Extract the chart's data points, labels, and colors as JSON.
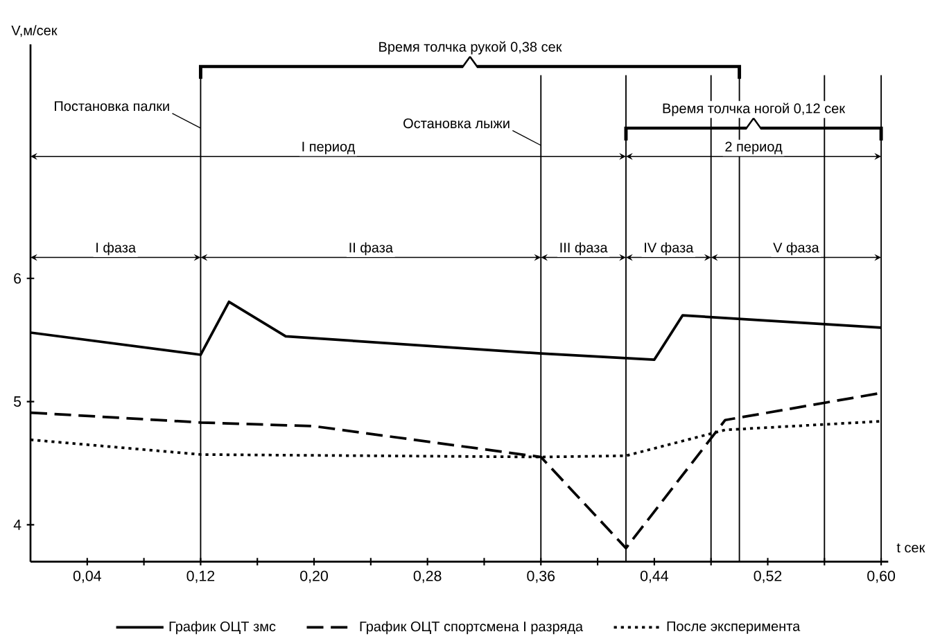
{
  "chart_data": {
    "type": "line",
    "xlabel": "t сек",
    "ylabel": "V,м/сек",
    "xlim": [
      0,
      0.605
    ],
    "ylim": [
      3.7,
      7.9
    ],
    "xticks": [
      {
        "value": 0.04,
        "label": "0,04"
      },
      {
        "value": 0.08,
        "label": null
      },
      {
        "value": 0.12,
        "label": "0,12"
      },
      {
        "value": 0.16,
        "label": null
      },
      {
        "value": 0.2,
        "label": "0,20"
      },
      {
        "value": 0.24,
        "label": null
      },
      {
        "value": 0.28,
        "label": "0,28"
      },
      {
        "value": 0.32,
        "label": null
      },
      {
        "value": 0.36,
        "label": "0,36"
      },
      {
        "value": 0.4,
        "label": null
      },
      {
        "value": 0.44,
        "label": "0,44"
      },
      {
        "value": 0.48,
        "label": null
      },
      {
        "value": 0.52,
        "label": "0,52"
      },
      {
        "value": 0.56,
        "label": null
      },
      {
        "value": 0.6,
        "label": "0,60"
      }
    ],
    "yticks": [
      4,
      5,
      6
    ],
    "grid": false,
    "legend": "bottom",
    "marker": "none",
    "series": [
      {
        "name": "График ОЦТ змс",
        "color": "#000000",
        "line_style": "solid",
        "x": [
          0,
          0.12,
          0.14,
          0.18,
          0.36,
          0.44,
          0.46,
          0.6
        ],
        "values": [
          5.56,
          5.38,
          5.81,
          5.53,
          5.39,
          5.34,
          5.7,
          5.6
        ]
      },
      {
        "name": "График ОЦТ спортсмена I разряда",
        "color": "#000000",
        "line_style": "dashed",
        "x": [
          0,
          0.12,
          0.2,
          0.36,
          0.42,
          0.49,
          0.6
        ],
        "values": [
          4.91,
          4.83,
          4.8,
          4.55,
          3.81,
          4.85,
          5.07
        ]
      },
      {
        "name": "После эксперимента",
        "color": "#000000",
        "line_style": "dotted",
        "x": [
          0,
          0.12,
          0.36,
          0.42,
          0.49,
          0.6
        ],
        "values": [
          4.69,
          4.57,
          4.55,
          4.56,
          4.77,
          4.84
        ]
      }
    ],
    "ref_lines": [
      {
        "axis": "x",
        "value": 0.12,
        "label": "Постановка палки"
      },
      {
        "axis": "x",
        "value": 0.36,
        "label": "Остановка лыжи"
      },
      {
        "axis": "x",
        "value": 0.42
      },
      {
        "axis": "x",
        "value": 0.48
      },
      {
        "axis": "x",
        "value": 0.5
      },
      {
        "axis": "x",
        "value": 0.56
      },
      {
        "axis": "x",
        "value": 0.6
      }
    ],
    "annotations": [
      "Время толчка рукой 0,38 сек",
      "Время толчка ногой 0,12 сек",
      "I период",
      "2 период",
      "I фаза",
      "II фаза",
      "III фаза",
      "IV фаза",
      "V фаза"
    ]
  }
}
